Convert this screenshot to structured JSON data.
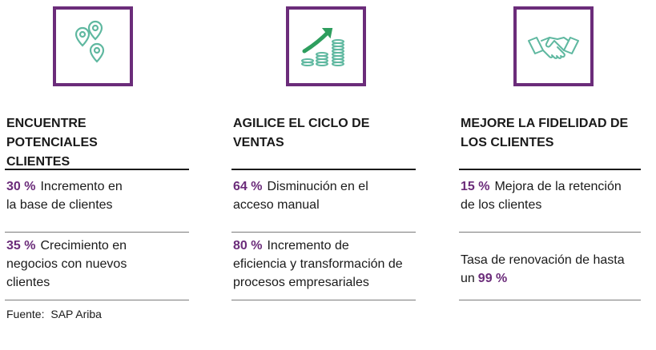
{
  "accent_color": "#6b2c7a",
  "icon_color": "#5fb8a0",
  "columns": [
    {
      "icon": "map-pins-icon",
      "heading_lines": [
        "ENCUENTRE",
        "POTENCIALES",
        "CLIENTES"
      ],
      "stats": [
        {
          "pct": "30 %",
          "text_lines": [
            "Incremento en",
            "la base de clientes"
          ]
        },
        {
          "pct": "35 %",
          "text_lines": [
            "Crecimiento en",
            "negocios con nuevos",
            "clientes"
          ]
        }
      ]
    },
    {
      "icon": "growth-coins-icon",
      "heading_lines": [
        "AGILICE EL CICLO DE",
        "VENTAS"
      ],
      "stats": [
        {
          "pct": "64 %",
          "text_lines": [
            "Disminución en el",
            "acceso manual"
          ]
        },
        {
          "pct": "80 %",
          "text_lines": [
            "Incremento de",
            "eficiencia y transformación de",
            "procesos empresariales"
          ]
        }
      ]
    },
    {
      "icon": "handshake-icon",
      "heading_lines": [
        "MEJORE LA FIDELIDAD DE",
        "LOS CLIENTES"
      ],
      "stats": [
        {
          "pct": "15 %",
          "text_lines": [
            "Mejora de la retención",
            "de los clientes"
          ]
        },
        {
          "prefix_lines": [
            "Tasa de renovación de hasta",
            "un"
          ],
          "pct": "99 %"
        }
      ]
    }
  ],
  "source": {
    "label": "Fuente:",
    "value": "SAP Ariba"
  }
}
